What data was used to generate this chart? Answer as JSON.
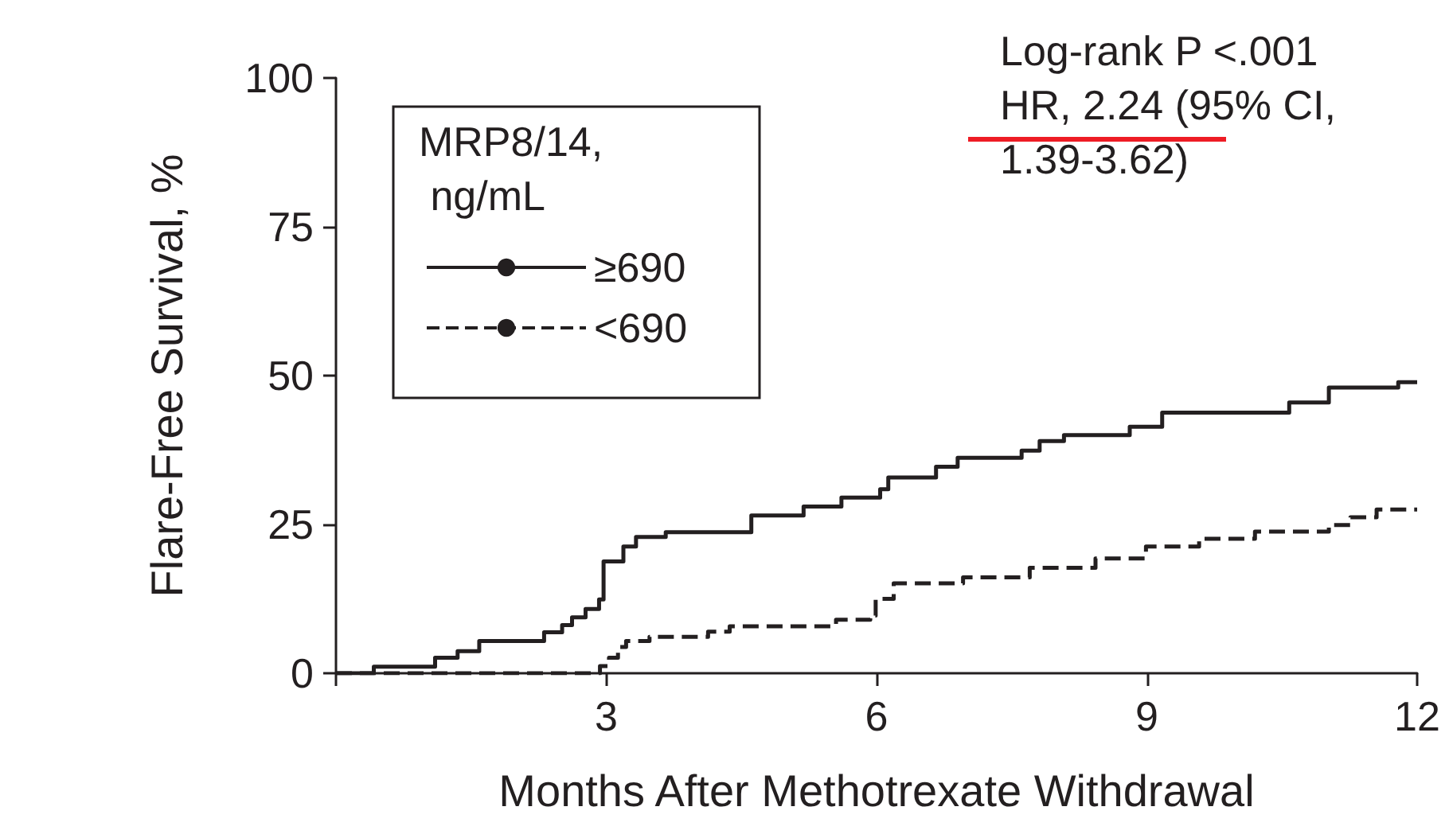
{
  "chart_data": {
    "type": "step",
    "xlabel": "Months After Methotrexate Withdrawal",
    "ylabel": "Flare-Free Survival, %",
    "legend_title": "MRP8/14, ng/mL",
    "annotations": [
      "Log-rank P <.001",
      "HR, 2.24 (95% CI, 1.39-3.62)"
    ],
    "xlim": [
      0,
      12
    ],
    "xticks": [
      {
        "value": 0,
        "label": null
      },
      3,
      6,
      9,
      12
    ],
    "ylim": [
      0,
      100
    ],
    "yticks": [
      0,
      25,
      50,
      75,
      100
    ],
    "grid": false,
    "legend": "top left",
    "marker": "none",
    "series": [
      {
        "name": "≥690",
        "color": "#231f20",
        "line_style": "solid",
        "x": [
          0,
          0.42,
          1.1,
          1.35,
          1.59,
          2.31,
          2.51,
          2.62,
          2.77,
          2.92,
          2.97,
          3.19,
          3.33,
          3.66,
          4.61,
          5.19,
          5.61,
          6.04,
          6.13,
          6.66,
          6.9,
          7.61,
          7.81,
          8.08,
          8.81,
          9.17,
          10.58,
          11.02,
          11.79,
          12
        ],
        "values": [
          0,
          1.1,
          2.6,
          3.7,
          5.4,
          6.9,
          8.1,
          9.4,
          10.8,
          12.4,
          18.8,
          21.3,
          22.9,
          23.7,
          26.5,
          28.0,
          29.5,
          30.9,
          32.9,
          34.7,
          36.2,
          37.4,
          39.0,
          40.0,
          41.4,
          43.8,
          45.5,
          48.0,
          48.9,
          48.9
        ]
      },
      {
        "name": "<690",
        "color": "#231f20",
        "line_style": "dashed",
        "x": [
          0,
          2.93,
          3.03,
          3.13,
          3.22,
          3.48,
          4.13,
          4.37,
          5.55,
          5.93,
          5.99,
          6.19,
          6.96,
          7.7,
          8.43,
          8.99,
          9.58,
          10.2,
          11.02,
          11.26,
          11.55,
          12
        ],
        "values": [
          0,
          1.2,
          2.6,
          4.4,
          5.4,
          6.1,
          7.0,
          7.9,
          9.0,
          9.7,
          12.5,
          15.1,
          16.1,
          17.7,
          19.3,
          21.3,
          22.6,
          23.8,
          24.9,
          26.2,
          27.5,
          27.5
        ]
      }
    ]
  }
}
